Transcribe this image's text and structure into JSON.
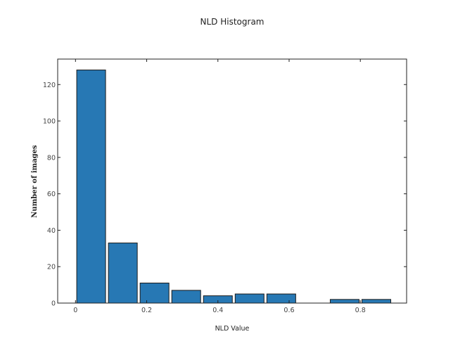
{
  "chart_data": {
    "type": "bar",
    "title": "NLD Histogram",
    "xlabel": "NLD Value",
    "ylabel": "Number of images",
    "xlim": [
      -0.05,
      0.93
    ],
    "ylim": [
      0,
      134
    ],
    "xticks": [
      0,
      0.2,
      0.4,
      0.6,
      0.8
    ],
    "xtick_labels": [
      "0",
      "0.2",
      "0.4",
      "0.6",
      "0.8"
    ],
    "yticks": [
      0,
      20,
      40,
      60,
      80,
      100,
      120
    ],
    "ytick_labels": [
      "0",
      "20",
      "40",
      "60",
      "80",
      "100",
      "120"
    ],
    "bin_width": 0.089,
    "bars": [
      {
        "x": 0.044,
        "value": 128
      },
      {
        "x": 0.133,
        "value": 33
      },
      {
        "x": 0.222,
        "value": 11
      },
      {
        "x": 0.311,
        "value": 7
      },
      {
        "x": 0.4,
        "value": 4
      },
      {
        "x": 0.489,
        "value": 5
      },
      {
        "x": 0.578,
        "value": 5
      },
      {
        "x": 0.667,
        "value": 0
      },
      {
        "x": 0.756,
        "value": 2
      },
      {
        "x": 0.845,
        "value": 2
      }
    ],
    "bar_color": "#2778b4",
    "bar_edge_color": "#1a1a1a",
    "grid": false,
    "legend": "none"
  }
}
